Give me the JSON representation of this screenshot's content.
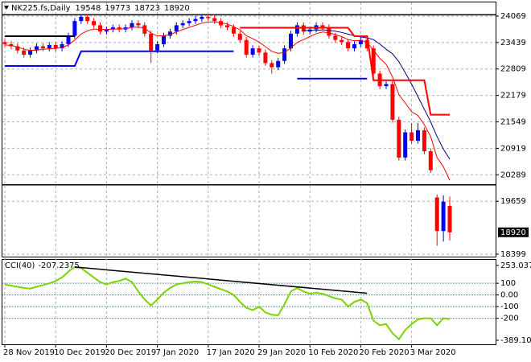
{
  "chart_data": [
    {
      "type": "candlestick",
      "title": "NK225.fs,Daily",
      "categories": [
        "28 Nov 2019",
        null,
        null,
        null,
        null,
        null,
        null,
        null,
        "10 Dec 2019",
        null,
        null,
        null,
        null,
        null,
        null,
        null,
        "20 Dec 2019",
        null,
        null,
        null,
        null,
        null,
        null,
        null,
        "7 Jan 2020",
        null,
        null,
        null,
        null,
        null,
        null,
        null,
        "17 Jan 2020",
        null,
        null,
        null,
        null,
        null,
        null,
        null,
        "29 Jan 2020",
        null,
        null,
        null,
        null,
        null,
        null,
        null,
        "10 Feb 2020",
        null,
        null,
        null,
        null,
        null,
        null,
        null,
        "20 Feb 2020",
        null,
        null,
        null,
        null,
        null,
        null,
        null,
        "3 Mar 2020",
        null,
        null,
        null,
        null,
        null,
        null
      ],
      "open": [
        23450,
        23400,
        23350,
        23250,
        23150,
        23250,
        23350,
        23300,
        23380,
        23300,
        23400,
        23600,
        23950,
        24050,
        23950,
        23850,
        23700,
        23750,
        23800,
        23750,
        23800,
        23900,
        23850,
        23650,
        23250,
        23400,
        23600,
        23700,
        23850,
        23900,
        23950,
        24000,
        24050,
        24020,
        23950,
        23850,
        23800,
        23650,
        23500,
        23150,
        23300,
        23200,
        22950,
        22850,
        23000,
        23300,
        23650,
        23850,
        23700,
        23750,
        23850,
        23800,
        23600,
        23500,
        23450,
        23300,
        23400,
        23500,
        23300,
        22700,
        22400,
        22450,
        21600,
        20700,
        21300,
        21100,
        21350,
        20850,
        19750,
        18950,
        19548
      ],
      "high": [
        23520,
        23470,
        23420,
        23320,
        23320,
        23420,
        23420,
        23450,
        23450,
        23470,
        23670,
        24020,
        24120,
        24120,
        24020,
        23920,
        23820,
        23870,
        23870,
        23870,
        23970,
        23970,
        23920,
        23720,
        23470,
        23670,
        23770,
        23920,
        23970,
        24020,
        24070,
        24120,
        24120,
        24090,
        24020,
        23920,
        23870,
        23720,
        23570,
        23370,
        23370,
        23270,
        23020,
        23070,
        23370,
        23720,
        23920,
        23920,
        23820,
        23920,
        23920,
        23870,
        23670,
        23570,
        23520,
        23470,
        23570,
        23570,
        23370,
        22770,
        22520,
        22520,
        21670,
        21370,
        21520,
        21520,
        21420,
        20920,
        19820,
        19800,
        19773
      ],
      "low": [
        23330,
        23280,
        23180,
        23080,
        23080,
        23180,
        23230,
        23230,
        23230,
        23230,
        23330,
        23530,
        23880,
        23880,
        23780,
        23630,
        23630,
        23680,
        23680,
        23680,
        23730,
        23780,
        23580,
        22950,
        23180,
        23330,
        23530,
        23630,
        23780,
        23830,
        23880,
        23930,
        23950,
        23880,
        23780,
        23730,
        23580,
        23430,
        23080,
        23080,
        23130,
        22880,
        22700,
        22780,
        22930,
        23230,
        23580,
        23630,
        23630,
        23680,
        23730,
        23530,
        23430,
        23380,
        23230,
        23230,
        23330,
        23230,
        22630,
        22330,
        22330,
        21530,
        20630,
        20630,
        21030,
        21030,
        20780,
        20330,
        18600,
        18700,
        18723
      ],
      "close": [
        23400,
        23350,
        23250,
        23150,
        23250,
        23350,
        23300,
        23380,
        23300,
        23400,
        23600,
        23950,
        24050,
        23950,
        23850,
        23700,
        23750,
        23800,
        23750,
        23800,
        23900,
        23850,
        23650,
        23250,
        23400,
        23600,
        23700,
        23850,
        23900,
        23950,
        24000,
        24050,
        24020,
        23950,
        23850,
        23800,
        23650,
        23500,
        23150,
        23300,
        23200,
        22950,
        22850,
        23000,
        23300,
        23650,
        23850,
        23700,
        23750,
        23850,
        23800,
        23600,
        23500,
        23450,
        23300,
        23400,
        23500,
        23300,
        22700,
        22400,
        22450,
        21600,
        20700,
        21300,
        21100,
        21350,
        20850,
        20400,
        18950,
        19650,
        18920
      ],
      "up_color": "#0000ff",
      "down_color": "#ff0000",
      "lines": [
        {
          "color": "#ff0000",
          "width": 1,
          "values": [
            23380,
            23370,
            23330,
            23280,
            23250,
            23260,
            23280,
            23290,
            23300,
            23320,
            23380,
            23500,
            23640,
            23720,
            23760,
            23750,
            23750,
            23760,
            23760,
            23770,
            23800,
            23810,
            23780,
            23660,
            23600,
            23600,
            23630,
            23690,
            23750,
            23800,
            23850,
            23900,
            23930,
            23930,
            23910,
            23880,
            23820,
            23740,
            23600,
            23530,
            23450,
            23340,
            23230,
            23180,
            23200,
            23310,
            23440,
            23510,
            23580,
            23650,
            23690,
            23670,
            23630,
            23580,
            23510,
            23480,
            23490,
            23440,
            23260,
            23060,
            22920,
            22620,
            22200,
            22000,
            21790,
            21700,
            21480,
            21200,
            20700,
            20480,
            20160
          ]
        },
        {
          "color": "#000080",
          "width": 1,
          "values": [
            null,
            null,
            null,
            null,
            null,
            null,
            null,
            null,
            null,
            null,
            null,
            null,
            null,
            null,
            null,
            null,
            null,
            null,
            null,
            null,
            null,
            null,
            null,
            null,
            null,
            null,
            null,
            null,
            null,
            null,
            null,
            null,
            null,
            null,
            null,
            null,
            null,
            null,
            null,
            null,
            null,
            null,
            null,
            null,
            null,
            null,
            null,
            23720,
            23730,
            23730,
            23740,
            23730,
            23710,
            23680,
            23640,
            23600,
            23570,
            23550,
            23510,
            23400,
            23280,
            23170,
            22980,
            22720,
            22450,
            22150,
            21850,
            21550,
            21200,
            20900,
            20660
          ]
        },
        {
          "color": "#0000ff",
          "width": 2,
          "values": [
            22880,
            22880,
            22880,
            22880,
            22880,
            22880,
            22880,
            22880,
            22880,
            22880,
            22880,
            22880,
            23230,
            23230,
            23230,
            23230,
            23230,
            23230,
            23230,
            23230,
            23230,
            23230,
            23230,
            23230,
            23230,
            23230,
            23230,
            23230,
            23230,
            23230,
            23230,
            23230,
            23230,
            23230,
            23230,
            23230,
            23230,
            null,
            null,
            null,
            null,
            null,
            null,
            null,
            null,
            null,
            22580,
            22580,
            22580,
            22580,
            22580,
            22580,
            22580,
            22580,
            22580,
            22580,
            22580,
            22580,
            null,
            null,
            null,
            null,
            null,
            null,
            null,
            null,
            null,
            null,
            null,
            null,
            null
          ]
        },
        {
          "color": "#ff0000",
          "width": 2,
          "values": [
            null,
            null,
            null,
            null,
            null,
            null,
            null,
            null,
            null,
            null,
            null,
            null,
            null,
            null,
            null,
            null,
            null,
            null,
            null,
            null,
            null,
            null,
            null,
            null,
            null,
            null,
            null,
            null,
            null,
            null,
            null,
            null,
            null,
            null,
            null,
            null,
            null,
            23790,
            23790,
            23790,
            23790,
            23790,
            23790,
            23790,
            23790,
            23790,
            23790,
            23790,
            23790,
            23790,
            23790,
            23790,
            23790,
            23790,
            23790,
            23590,
            23590,
            23590,
            22540,
            22540,
            22540,
            22540,
            22540,
            22540,
            22540,
            22540,
            22540,
            21720,
            21720,
            21720,
            21720
          ]
        },
        {
          "color": "#000000",
          "width": 2,
          "values": [
            23590,
            23590,
            23590,
            23590,
            23590,
            23590,
            23590,
            23590,
            23590,
            23590,
            23590,
            23590,
            null,
            null,
            null,
            null,
            null,
            null,
            null,
            null,
            null,
            null,
            null,
            null,
            null,
            null,
            null,
            null,
            null,
            null,
            null,
            null,
            null,
            null,
            null,
            null,
            null,
            null,
            null,
            null,
            null,
            null,
            null,
            null,
            null,
            null,
            null,
            null,
            null,
            null,
            null,
            null,
            null,
            null,
            null,
            null,
            null,
            null,
            null,
            null,
            null,
            null,
            null,
            null,
            null,
            null,
            null,
            null,
            null,
            null,
            null
          ]
        }
      ],
      "levels": [
        24100,
        20050
      ],
      "level_color": "#000000",
      "ylim": [
        18360,
        24260
      ],
      "yticks": [
        24069,
        23439,
        22809,
        22179,
        21549,
        20919,
        20289,
        19659,
        18399
      ],
      "grid": true
    },
    {
      "type": "line",
      "title": "CCI(40)",
      "color": "#7cd300",
      "values": [
        90,
        80,
        70,
        60,
        55,
        70,
        85,
        100,
        120,
        150,
        200,
        240,
        230,
        190,
        150,
        110,
        90,
        110,
        120,
        140,
        110,
        30,
        -40,
        -90,
        -40,
        20,
        60,
        90,
        100,
        110,
        115,
        110,
        90,
        70,
        50,
        30,
        0,
        -60,
        -110,
        -130,
        -100,
        -150,
        -170,
        -175,
        -80,
        30,
        60,
        30,
        10,
        20,
        10,
        -10,
        -30,
        -40,
        -100,
        -60,
        -40,
        -70,
        -220,
        -260,
        -250,
        -330,
        -380,
        -300,
        -250,
        -210,
        -200,
        -200,
        -260,
        -200,
        -207.2375
      ],
      "trendline": {
        "x": [
          11,
          57
        ],
        "values": [
          240,
          15
        ],
        "color": "#000000"
      },
      "ylim": [
        -389.1,
        253.0378
      ],
      "yticks": [
        253.0378,
        100,
        {
          "value": 0,
          "label": "0.00"
        },
        -100,
        -200,
        {
          "value": -389.1,
          "label": "-389.100"
        }
      ],
      "grid_color": "#4682b4"
    }
  ]
}
